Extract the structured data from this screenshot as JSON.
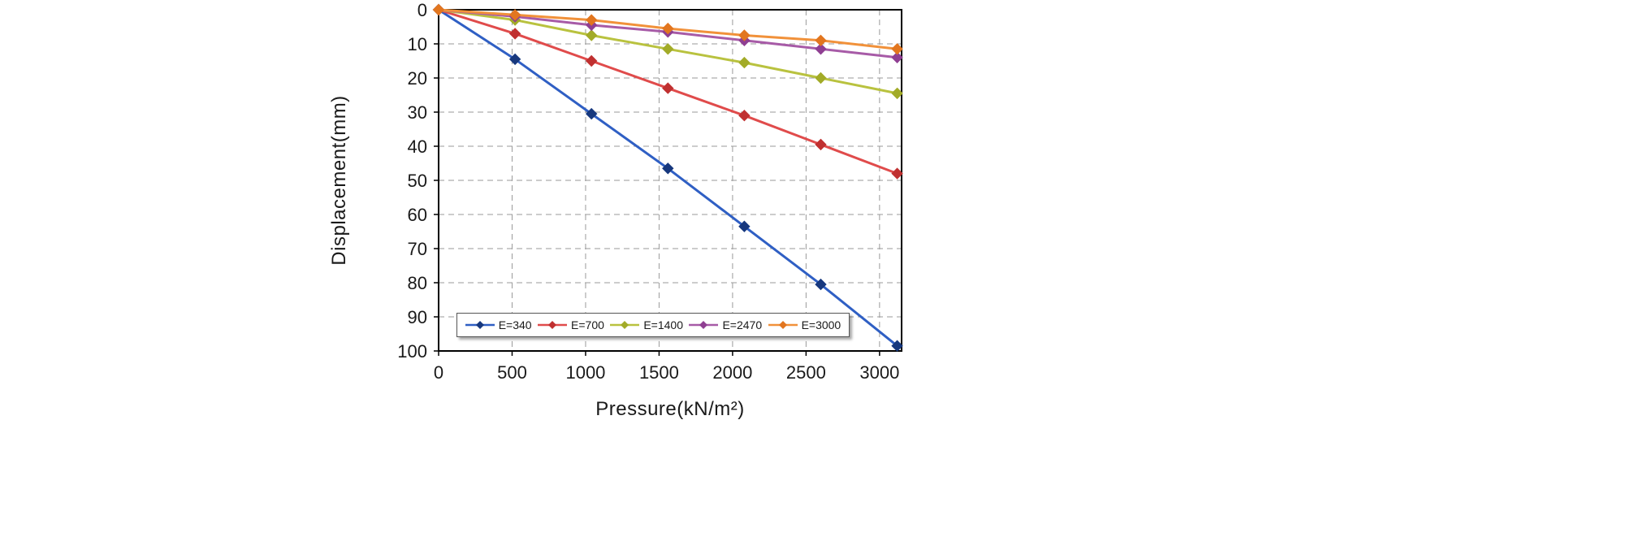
{
  "chart_data": {
    "type": "line",
    "title": "",
    "xlabel": "Pressure(kN/m²)",
    "ylabel": "Displacement(mm)",
    "xlim": [
      0,
      3150
    ],
    "ylim": [
      0,
      100
    ],
    "y_inverted": true,
    "grid": true,
    "legend_position": "bottom-inside",
    "x_ticks": [
      0,
      500,
      1000,
      1500,
      2000,
      2500,
      3000
    ],
    "y_ticks": [
      0,
      10,
      20,
      30,
      40,
      50,
      60,
      70,
      80,
      90,
      100
    ],
    "x": [
      0,
      520,
      1040,
      1560,
      2080,
      2600,
      3120
    ],
    "series": [
      {
        "name": "E=340",
        "line_color": "#2f5fc4",
        "marker_color": "#17387e",
        "values": [
          0,
          14.5,
          30.5,
          46.5,
          63.5,
          80.5,
          98.5
        ]
      },
      {
        "name": "E=700",
        "line_color": "#e04b4b",
        "marker_color": "#c03030",
        "values": [
          0,
          7,
          15,
          23,
          31,
          39.5,
          48
        ]
      },
      {
        "name": "E=1400",
        "line_color": "#b9c23f",
        "marker_color": "#a2ab28",
        "values": [
          0,
          3,
          7.5,
          11.5,
          15.5,
          20,
          24.5
        ]
      },
      {
        "name": "E=2470",
        "line_color": "#a75ba7",
        "marker_color": "#8f3f92",
        "values": [
          0,
          2,
          4.5,
          6.5,
          9,
          11.5,
          14
        ]
      },
      {
        "name": "E=3000",
        "line_color": "#f1913a",
        "marker_color": "#e2761f",
        "values": [
          0,
          1.5,
          3,
          5.5,
          7.5,
          9,
          11.5
        ]
      }
    ]
  }
}
